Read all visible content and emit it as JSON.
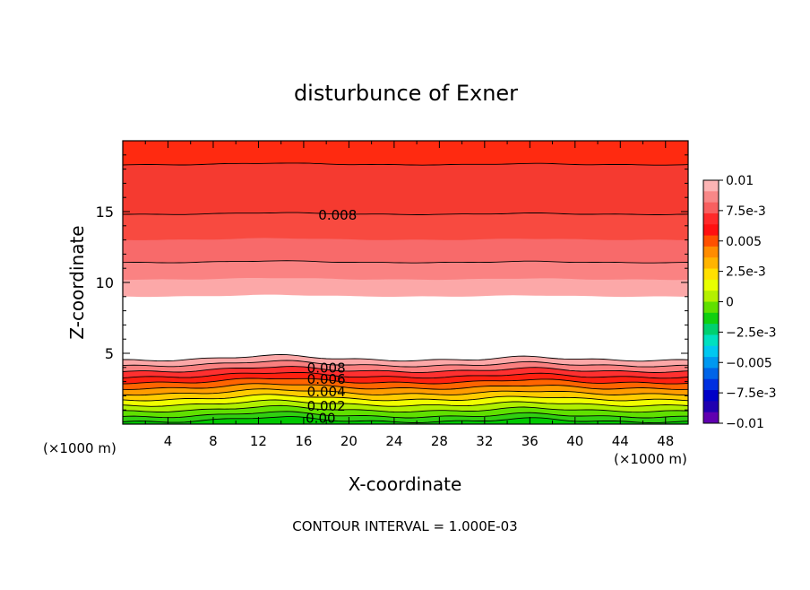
{
  "chart_data": {
    "type": "contour",
    "title": "disturbunce of Exner",
    "xlabel": "X-coordinate",
    "ylabel": "Z-coordinate",
    "x_unit_left": "(×1000 m)",
    "x_unit_right": "(×1000 m)",
    "footer": "CONTOUR INTERVAL = 1.000E-03",
    "xlim": [
      0,
      50
    ],
    "ylim": [
      0,
      20
    ],
    "x_ticks": [
      4,
      8,
      12,
      16,
      20,
      24,
      28,
      32,
      36,
      40,
      44,
      48
    ],
    "y_ticks": [
      5,
      10,
      15
    ],
    "x_tick_labels": [
      "4",
      "8",
      "12",
      "16",
      "20",
      "24",
      "28",
      "32",
      "36",
      "40",
      "44",
      "48"
    ],
    "y_tick_labels": [
      "5",
      "10",
      "15"
    ],
    "contour_interval": 0.001,
    "contour_labels": [
      {
        "text": "0.008",
        "x": 19,
        "z": 14.8
      },
      {
        "text": "0.008",
        "x": 18,
        "z": 3.9
      },
      {
        "text": "0.006",
        "x": 18,
        "z": 3.0
      },
      {
        "text": "0.004",
        "x": 18,
        "z": 2.1
      },
      {
        "text": "0.002",
        "x": 18,
        "z": 1.2
      },
      {
        "text": "0.00",
        "x": 17.5,
        "z": 0.3
      }
    ],
    "bands_upper": [
      {
        "z": 9.0,
        "color": "#ffffff"
      },
      {
        "z": 10.2,
        "color": "#fca8a8"
      },
      {
        "z": 11.4,
        "color": "#fa8282"
      },
      {
        "z": 13.0,
        "color": "#f86a6a"
      },
      {
        "z": 14.8,
        "color": "#f84a40"
      },
      {
        "z": 18.3,
        "color": "#f53a30"
      },
      {
        "z": 20.0,
        "color": "#ff2a10"
      }
    ],
    "upper_top_color": "#fa5018",
    "bands_lower": [
      {
        "z": 4.5,
        "color": "#fca8a8"
      },
      {
        "z": 4.1,
        "color": "#fa8080"
      },
      {
        "z": 3.7,
        "color": "#ff3030"
      },
      {
        "z": 3.3,
        "color": "#ff2010"
      },
      {
        "z": 2.9,
        "color": "#ff6400"
      },
      {
        "z": 2.5,
        "color": "#ff9c00"
      },
      {
        "z": 2.1,
        "color": "#ffcc00"
      },
      {
        "z": 1.7,
        "color": "#f0ff00"
      },
      {
        "z": 1.3,
        "color": "#b0f000"
      },
      {
        "z": 0.9,
        "color": "#60e000"
      },
      {
        "z": 0.5,
        "color": "#30d010"
      },
      {
        "z": 0.15,
        "color": "#00c800"
      }
    ],
    "colorbar": {
      "labels": [
        "0.01",
        "7.5e-3",
        "0.005",
        "2.5e-3",
        "0",
        "−2.5e-3",
        "−0.005",
        "−7.5e-3",
        "−0.01"
      ],
      "colors": [
        "#fcb4b4",
        "#f88888",
        "#f86060",
        "#ff2a2a",
        "#ff1010",
        "#ff5000",
        "#ff8c00",
        "#ffb400",
        "#ffe000",
        "#e8ff00",
        "#b4f000",
        "#60e000",
        "#10d010",
        "#00d070",
        "#00e0c0",
        "#00c8f0",
        "#0098f0",
        "#0064e8",
        "#0030e0",
        "#0000c8",
        "#2000b0",
        "#6000b0"
      ]
    }
  }
}
